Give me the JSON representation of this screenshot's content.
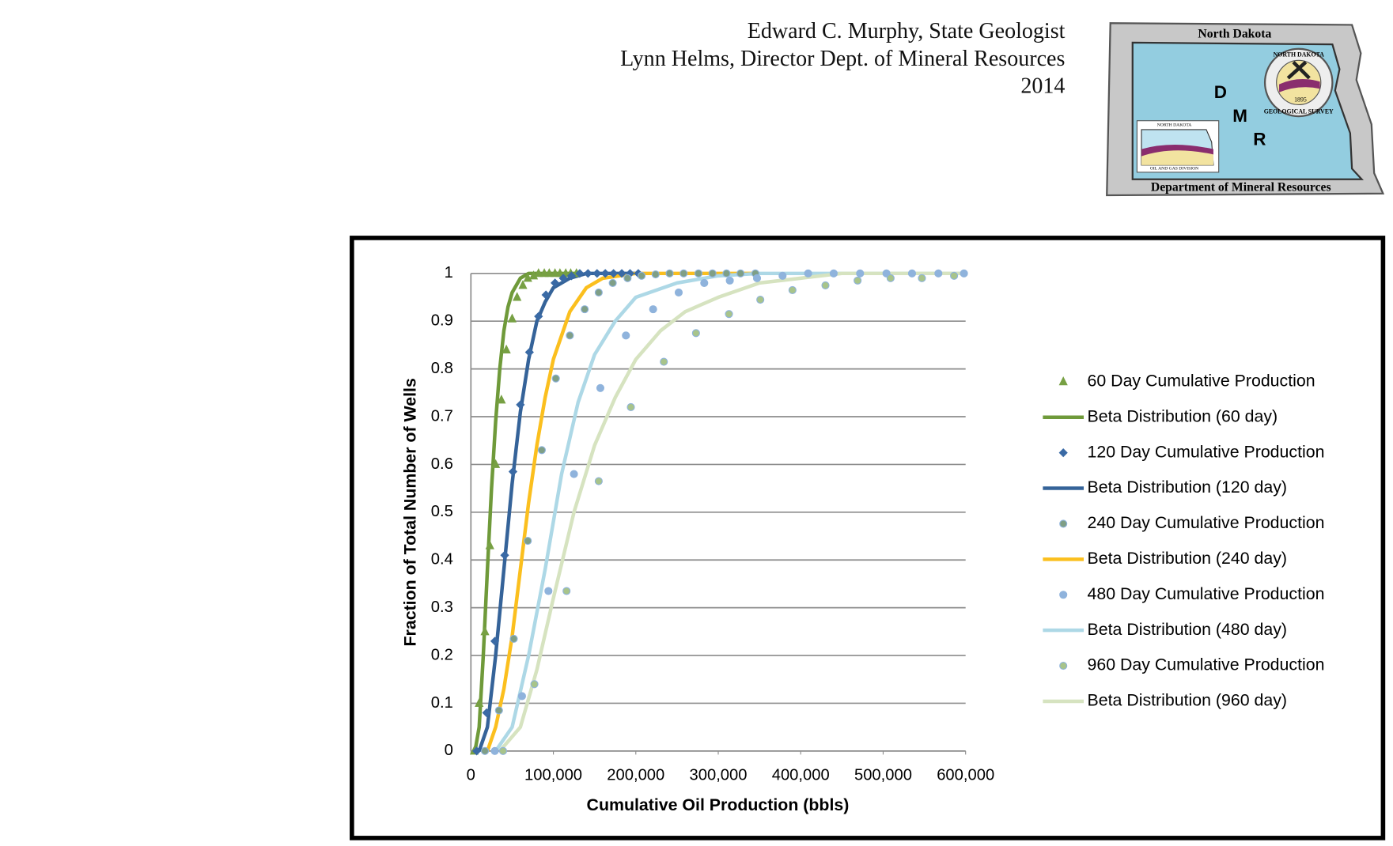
{
  "header": {
    "lines": [
      "Edward C. Murphy, State Geologist",
      "Lynn Helms, Director Dept. of Mineral Resources",
      "2014"
    ]
  },
  "logo": {
    "top_label": "North Dakota",
    "letters": [
      "D",
      "M",
      "R"
    ],
    "bottom_label": "Department of Mineral Resources",
    "seal_year": "1895",
    "seal_top": "NORTH DAKOTA",
    "seal_bottom": "GEOLOGICAL SURVEY",
    "inset_top": "NORTH DAKOTA",
    "inset_bottom": "OIL AND GAS DIVISION"
  },
  "chart_data": {
    "type": "line",
    "x_label": "Cumulative Oil Production (bbls)",
    "y_label": "Fraction of Total Number of Wells",
    "xlim": [
      0,
      600000
    ],
    "xticks": [
      0,
      {
        "value": 100000,
        "label": "100,000"
      },
      {
        "value": 200000,
        "label": "200,000"
      },
      {
        "value": 300000,
        "label": "300,000"
      },
      {
        "value": 400000,
        "label": "400,000"
      },
      {
        "value": 500000,
        "label": "500,000"
      },
      {
        "value": 600000,
        "label": "600,000"
      }
    ],
    "ylim": [
      0,
      1
    ],
    "yticks": [
      0,
      0.1,
      0.2,
      0.3,
      0.4,
      0.5,
      0.6,
      0.7,
      0.8,
      0.9,
      1
    ],
    "grid": true,
    "legend": "right",
    "series": [
      {
        "name": "60 Day Cumulative Production",
        "color": "#77a043",
        "mode": "markers",
        "marker": "triangle",
        "x": [
          4000,
          10000,
          17000,
          23000,
          30000,
          37000,
          43000,
          50000,
          56000,
          63000,
          69000,
          76000,
          82000,
          89000,
          95000,
          102000,
          108000,
          115000,
          121000,
          128000
        ],
        "values": [
          0,
          0.1,
          0.25,
          0.43,
          0.6,
          0.735,
          0.84,
          0.905,
          0.95,
          0.975,
          0.99,
          0.995,
          1,
          1,
          1,
          1,
          1,
          1,
          1,
          1
        ]
      },
      {
        "name": "Beta Distribution (60 day)",
        "color": "#6f9a3a",
        "mode": "line",
        "x": [
          5000,
          10000,
          15000,
          20000,
          25000,
          30000,
          35000,
          40000,
          45000,
          50000,
          60000,
          70000,
          130000
        ],
        "values": [
          0,
          0.05,
          0.2,
          0.38,
          0.55,
          0.69,
          0.8,
          0.88,
          0.93,
          0.96,
          0.99,
          1,
          1
        ]
      },
      {
        "name": "120 Day Cumulative Production",
        "color": "#3a6aa5",
        "mode": "markers",
        "marker": "diamond",
        "x": [
          7000,
          19000,
          29000,
          41000,
          51000,
          60000,
          71000,
          82000,
          91000,
          102000,
          112000,
          122000,
          132000,
          142000,
          153000,
          163000,
          173000,
          183000,
          193000,
          203000
        ],
        "values": [
          0,
          0.08,
          0.23,
          0.41,
          0.585,
          0.725,
          0.835,
          0.91,
          0.955,
          0.98,
          0.99,
          0.995,
          1,
          1,
          1,
          1,
          1,
          1,
          1,
          1
        ]
      },
      {
        "name": "Beta Distribution (120 day)",
        "color": "#356399",
        "mode": "line",
        "x": [
          10000,
          20000,
          30000,
          40000,
          50000,
          60000,
          70000,
          80000,
          90000,
          100000,
          120000,
          140000,
          200000
        ],
        "values": [
          0,
          0.05,
          0.2,
          0.38,
          0.56,
          0.71,
          0.82,
          0.9,
          0.94,
          0.97,
          0.99,
          1,
          1
        ]
      },
      {
        "name": "240 Day Cumulative Production",
        "color": "#7f9f86",
        "mode": "markers",
        "marker": "circle",
        "x": [
          17000,
          34000,
          52000,
          69000,
          86000,
          103000,
          120000,
          138000,
          155000,
          172000,
          190000,
          207000,
          224000,
          241000,
          258000,
          276000,
          293000,
          310000,
          327000,
          345000
        ],
        "values": [
          0,
          0.085,
          0.235,
          0.44,
          0.63,
          0.78,
          0.87,
          0.925,
          0.96,
          0.98,
          0.99,
          0.995,
          0.998,
          1,
          1,
          1,
          1,
          1,
          1,
          1
        ]
      },
      {
        "name": "Beta Distribution (240 day)",
        "color": "#fbbf1e",
        "mode": "line",
        "x": [
          20000,
          30000,
          40000,
          50000,
          60000,
          70000,
          80000,
          90000,
          100000,
          120000,
          140000,
          160000,
          200000,
          350000
        ],
        "values": [
          0,
          0.05,
          0.13,
          0.24,
          0.38,
          0.52,
          0.64,
          0.74,
          0.82,
          0.92,
          0.97,
          0.99,
          1,
          1
        ]
      },
      {
        "name": "480 Day Cumulative Production",
        "color": "#8fb3dc",
        "mode": "markers",
        "marker": "circle",
        "x": [
          29000,
          62000,
          94000,
          125000,
          157000,
          188000,
          221000,
          252000,
          283000,
          314000,
          347000,
          378000,
          409000,
          440000,
          472000,
          504000,
          535000,
          567000,
          598000
        ],
        "values": [
          0,
          0.115,
          0.335,
          0.58,
          0.76,
          0.87,
          0.925,
          0.96,
          0.98,
          0.985,
          0.99,
          0.995,
          1,
          1,
          1,
          1,
          1,
          1,
          1
        ]
      },
      {
        "name": "Beta Distribution (480 day)",
        "color": "#add8e6",
        "mode": "line",
        "x": [
          30000,
          50000,
          70000,
          90000,
          110000,
          130000,
          150000,
          175000,
          200000,
          250000,
          300000,
          350000,
          600000
        ],
        "values": [
          0,
          0.05,
          0.2,
          0.38,
          0.58,
          0.73,
          0.83,
          0.9,
          0.95,
          0.98,
          0.995,
          1,
          1
        ]
      },
      {
        "name": "960 Day Cumulative Production",
        "color": "#a8c48a",
        "mode": "markers",
        "marker": "circle",
        "x": [
          39000,
          77000,
          116000,
          155000,
          194000,
          234000,
          273000,
          313000,
          351000,
          390000,
          430000,
          469000,
          509000,
          547000,
          586000
        ],
        "values": [
          0,
          0.14,
          0.335,
          0.565,
          0.72,
          0.815,
          0.875,
          0.915,
          0.945,
          0.965,
          0.975,
          0.985,
          0.99,
          0.99,
          0.995
        ]
      },
      {
        "name": "Beta Distribution (960 day)",
        "color": "#d6e3c0",
        "mode": "line",
        "x": [
          35000,
          60000,
          80000,
          100000,
          125000,
          150000,
          175000,
          200000,
          230000,
          260000,
          300000,
          350000,
          400000,
          450000,
          600000
        ],
        "values": [
          0,
          0.05,
          0.17,
          0.32,
          0.5,
          0.64,
          0.74,
          0.82,
          0.88,
          0.92,
          0.95,
          0.98,
          0.99,
          1,
          1
        ]
      }
    ]
  }
}
